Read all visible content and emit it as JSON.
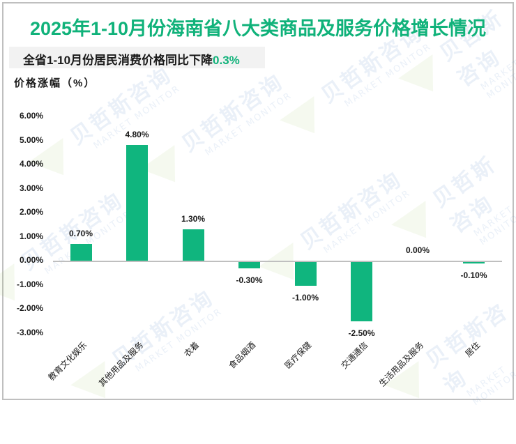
{
  "title": "2025年1-10月份海南省八大类商品及服务价格增长情况",
  "subtitle": {
    "text": "全省1-10月份居民消费价格同比下降",
    "highlight": "0.3%"
  },
  "watermark": {
    "cn": "贝哲斯咨询",
    "en": "MARKET MONITOR"
  },
  "colors": {
    "title": "#10b27a",
    "bar": "#10b57e",
    "axis": "#bfbfbf",
    "subtitle_bg": "#f2f2f2"
  },
  "chart_data": {
    "type": "bar",
    "title": "2025年1-10月份海南省八大类商品及服务价格增长情况",
    "subtitle": "全省1-10月份居民消费价格同比下降0.3%",
    "xlabel": "",
    "ylabel": "价格涨幅（%）",
    "ylim": [
      -3.0,
      6.0
    ],
    "yticks": [
      "6.00%",
      "5.00%",
      "4.00%",
      "3.00%",
      "2.00%",
      "1.00%",
      "0.00%",
      "-1.00%",
      "-2.00%",
      "-3.00%"
    ],
    "grid": false,
    "legend": null,
    "categories": [
      "教育文化娱乐",
      "其他用品及服务",
      "衣着",
      "食品烟酒",
      "医疗保健",
      "交通通信",
      "生活用品及服务",
      "居住"
    ],
    "values": [
      0.7,
      4.8,
      1.3,
      -0.3,
      -1.0,
      -2.5,
      0.0,
      -0.1
    ],
    "labels": [
      "0.70%",
      "4.80%",
      "1.30%",
      "-0.30%",
      "-1.00%",
      "-2.50%",
      "0.00%",
      "-0.10%"
    ]
  }
}
